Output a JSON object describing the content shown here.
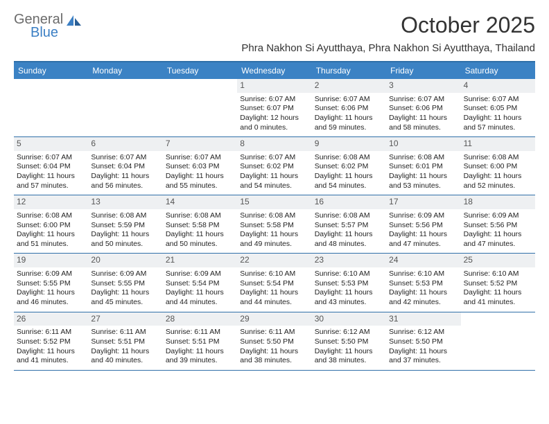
{
  "brand": {
    "text_general": "General",
    "text_blue": "Blue"
  },
  "title": "October 2025",
  "location": "Phra Nakhon Si Ayutthaya, Phra Nakhon Si Ayutthaya, Thailand",
  "colors": {
    "header_bg": "#3b82c4",
    "header_border": "#2f6fa8",
    "date_bg": "#eef0f2",
    "text": "#222222",
    "logo_gray": "#6b6b6b",
    "logo_blue": "#3b7fc4"
  },
  "day_names": [
    "Sunday",
    "Monday",
    "Tuesday",
    "Wednesday",
    "Thursday",
    "Friday",
    "Saturday"
  ],
  "weeks": [
    [
      null,
      null,
      null,
      {
        "d": "1",
        "sr": "6:07 AM",
        "ss": "6:07 PM",
        "dl": "12 hours and 0 minutes."
      },
      {
        "d": "2",
        "sr": "6:07 AM",
        "ss": "6:06 PM",
        "dl": "11 hours and 59 minutes."
      },
      {
        "d": "3",
        "sr": "6:07 AM",
        "ss": "6:06 PM",
        "dl": "11 hours and 58 minutes."
      },
      {
        "d": "4",
        "sr": "6:07 AM",
        "ss": "6:05 PM",
        "dl": "11 hours and 57 minutes."
      }
    ],
    [
      {
        "d": "5",
        "sr": "6:07 AM",
        "ss": "6:04 PM",
        "dl": "11 hours and 57 minutes."
      },
      {
        "d": "6",
        "sr": "6:07 AM",
        "ss": "6:04 PM",
        "dl": "11 hours and 56 minutes."
      },
      {
        "d": "7",
        "sr": "6:07 AM",
        "ss": "6:03 PM",
        "dl": "11 hours and 55 minutes."
      },
      {
        "d": "8",
        "sr": "6:07 AM",
        "ss": "6:02 PM",
        "dl": "11 hours and 54 minutes."
      },
      {
        "d": "9",
        "sr": "6:08 AM",
        "ss": "6:02 PM",
        "dl": "11 hours and 54 minutes."
      },
      {
        "d": "10",
        "sr": "6:08 AM",
        "ss": "6:01 PM",
        "dl": "11 hours and 53 minutes."
      },
      {
        "d": "11",
        "sr": "6:08 AM",
        "ss": "6:00 PM",
        "dl": "11 hours and 52 minutes."
      }
    ],
    [
      {
        "d": "12",
        "sr": "6:08 AM",
        "ss": "6:00 PM",
        "dl": "11 hours and 51 minutes."
      },
      {
        "d": "13",
        "sr": "6:08 AM",
        "ss": "5:59 PM",
        "dl": "11 hours and 50 minutes."
      },
      {
        "d": "14",
        "sr": "6:08 AM",
        "ss": "5:58 PM",
        "dl": "11 hours and 50 minutes."
      },
      {
        "d": "15",
        "sr": "6:08 AM",
        "ss": "5:58 PM",
        "dl": "11 hours and 49 minutes."
      },
      {
        "d": "16",
        "sr": "6:08 AM",
        "ss": "5:57 PM",
        "dl": "11 hours and 48 minutes."
      },
      {
        "d": "17",
        "sr": "6:09 AM",
        "ss": "5:56 PM",
        "dl": "11 hours and 47 minutes."
      },
      {
        "d": "18",
        "sr": "6:09 AM",
        "ss": "5:56 PM",
        "dl": "11 hours and 47 minutes."
      }
    ],
    [
      {
        "d": "19",
        "sr": "6:09 AM",
        "ss": "5:55 PM",
        "dl": "11 hours and 46 minutes."
      },
      {
        "d": "20",
        "sr": "6:09 AM",
        "ss": "5:55 PM",
        "dl": "11 hours and 45 minutes."
      },
      {
        "d": "21",
        "sr": "6:09 AM",
        "ss": "5:54 PM",
        "dl": "11 hours and 44 minutes."
      },
      {
        "d": "22",
        "sr": "6:10 AM",
        "ss": "5:54 PM",
        "dl": "11 hours and 44 minutes."
      },
      {
        "d": "23",
        "sr": "6:10 AM",
        "ss": "5:53 PM",
        "dl": "11 hours and 43 minutes."
      },
      {
        "d": "24",
        "sr": "6:10 AM",
        "ss": "5:53 PM",
        "dl": "11 hours and 42 minutes."
      },
      {
        "d": "25",
        "sr": "6:10 AM",
        "ss": "5:52 PM",
        "dl": "11 hours and 41 minutes."
      }
    ],
    [
      {
        "d": "26",
        "sr": "6:11 AM",
        "ss": "5:52 PM",
        "dl": "11 hours and 41 minutes."
      },
      {
        "d": "27",
        "sr": "6:11 AM",
        "ss": "5:51 PM",
        "dl": "11 hours and 40 minutes."
      },
      {
        "d": "28",
        "sr": "6:11 AM",
        "ss": "5:51 PM",
        "dl": "11 hours and 39 minutes."
      },
      {
        "d": "29",
        "sr": "6:11 AM",
        "ss": "5:50 PM",
        "dl": "11 hours and 38 minutes."
      },
      {
        "d": "30",
        "sr": "6:12 AM",
        "ss": "5:50 PM",
        "dl": "11 hours and 38 minutes."
      },
      {
        "d": "31",
        "sr": "6:12 AM",
        "ss": "5:50 PM",
        "dl": "11 hours and 37 minutes."
      },
      null
    ]
  ],
  "labels": {
    "sunrise": "Sunrise:",
    "sunset": "Sunset:",
    "daylight": "Daylight:"
  }
}
